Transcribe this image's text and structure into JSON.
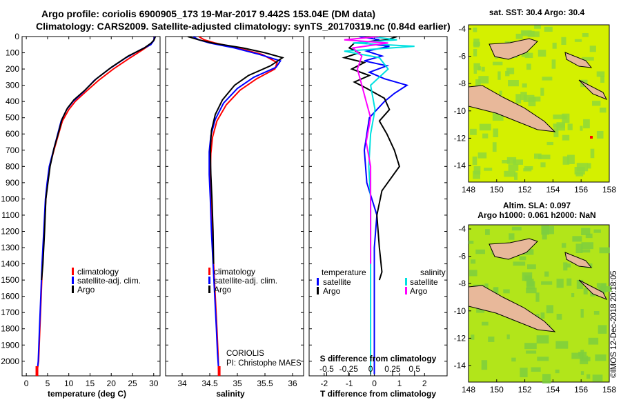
{
  "title_line1": "Argo profile: coriolis 6900905_173 19-Mar-2017 9.442S 153.04E (DM data)",
  "title_line2": "Climatology: CARS2009. Satellite-adjusted climatology: synTS_20170319.nc (0.84d earlier)",
  "watermark": "©IMOS 12-Dec-2018 20:18:05",
  "maps": {
    "top_title": "sat. SST: 30.4 Argo: 30.4",
    "bottom_title_line1": "Altim. SLA: 0.097",
    "bottom_title_line2": "Argo h1000: 0.061 h2000: NaN",
    "xticks": [
      "148",
      "150",
      "152",
      "154",
      "156",
      "158"
    ],
    "yticks": [
      "-4",
      "-6",
      "-8",
      "-10",
      "-12",
      "-14"
    ],
    "colors": {
      "sst_base": "#d4f000",
      "sst_patch": "#8ed83a",
      "sla_base": "#b2e51a",
      "sla_patch": "#7ccf3e",
      "land": "#e8b89a",
      "argo_marker": "#ff0000"
    }
  },
  "chart_data": [
    {
      "type": "line",
      "id": "temperature",
      "xlabel": "temperature (deg C)",
      "ylabel": "",
      "xlim": [
        -1,
        31.5
      ],
      "ylim": [
        2090,
        0
      ],
      "xticks": [
        0,
        5,
        10,
        15,
        20,
        25,
        30
      ],
      "yticks": [
        0,
        100,
        200,
        300,
        400,
        500,
        600,
        700,
        800,
        900,
        1000,
        1100,
        1200,
        1300,
        1400,
        1500,
        1600,
        1700,
        1800,
        1900,
        2000
      ],
      "ytick_labels": [
        "0",
        "100",
        "200",
        "300",
        "400",
        "500",
        "600",
        "700",
        "800",
        "900",
        "1000",
        "1100",
        "1200",
        "1300",
        "1400",
        "1500",
        "1600",
        "1700",
        "1800",
        "1900",
        "2000"
      ],
      "legend": [
        "climatology",
        "satellite-adj. clim.",
        "Argo"
      ],
      "series": [
        {
          "name": "climatology",
          "color": "#ff0000",
          "x": [
            30.2,
            30.0,
            29.2,
            27.5,
            24.5,
            20.5,
            17.0,
            14.0,
            11.5,
            10.0,
            8.5,
            7.6,
            6.5,
            5.5,
            5.0,
            4.6,
            4.2,
            3.8,
            3.5,
            3.2,
            2.9,
            2.6,
            2.5
          ],
          "y": [
            0,
            25,
            50,
            80,
            130,
            200,
            270,
            340,
            400,
            450,
            520,
            600,
            700,
            800,
            900,
            1000,
            1200,
            1400,
            1600,
            1800,
            2000,
            2050,
            2090
          ]
        },
        {
          "name": "satellite-adj. clim.",
          "color": "#0000ff",
          "x": [
            30.2,
            30.0,
            29.3,
            27.0,
            23.5,
            19.5,
            16.0,
            13.5,
            11.0,
            9.5,
            8.2,
            7.4,
            6.4,
            5.4,
            4.9,
            4.5,
            4.1,
            3.7,
            3.4,
            3.1,
            2.8,
            2.6,
            2.5
          ],
          "y": [
            0,
            25,
            50,
            80,
            130,
            200,
            270,
            340,
            400,
            450,
            520,
            600,
            700,
            800,
            900,
            1000,
            1200,
            1400,
            1600,
            1800,
            2000,
            2050,
            2090
          ]
        },
        {
          "name": "Argo",
          "color": "#000000",
          "x": [
            30.4,
            30.1,
            29.4,
            27.8,
            24.0,
            20.0,
            16.5,
            13.8,
            11.2,
            9.7,
            8.4,
            7.6,
            6.5,
            5.6,
            5.1,
            4.6,
            4.3,
            3.9,
            3.6
          ],
          "y": [
            0,
            20,
            40,
            70,
            120,
            190,
            260,
            330,
            390,
            440,
            510,
            590,
            690,
            800,
            900,
            1000,
            1200,
            1400,
            1500
          ]
        }
      ]
    },
    {
      "type": "line",
      "id": "salinity",
      "xlabel": "salinity",
      "ylabel": "",
      "xlim": [
        33.7,
        36.2
      ],
      "ylim": [
        2090,
        0
      ],
      "xticks": [
        34,
        34.5,
        35,
        35.5,
        36
      ],
      "xtick_labels": [
        "34",
        "34.5",
        "35",
        "35.5",
        "36"
      ],
      "legend": [
        "climatology",
        "satellite-adj. clim.",
        "Argo"
      ],
      "annotation": [
        "CORIOLIS",
        "PI: Christophe MAES"
      ],
      "series": [
        {
          "name": "climatology",
          "color": "#ff0000",
          "x": [
            34.3,
            34.4,
            34.6,
            35.0,
            35.45,
            35.72,
            35.68,
            35.35,
            35.05,
            34.8,
            34.63,
            34.55,
            34.52,
            34.51,
            34.52,
            34.54,
            34.57,
            34.6,
            34.63,
            34.65,
            34.66,
            34.67
          ],
          "y": [
            0,
            20,
            40,
            70,
            110,
            160,
            200,
            260,
            330,
            420,
            520,
            620,
            720,
            850,
            1000,
            1200,
            1400,
            1600,
            1800,
            1950,
            2050,
            2090
          ]
        },
        {
          "name": "satellite-adj. clim.",
          "color": "#0000ff",
          "x": [
            34.2,
            34.3,
            34.5,
            34.95,
            35.4,
            35.78,
            35.7,
            35.3,
            35.0,
            34.75,
            34.6,
            34.52,
            34.49,
            34.49,
            34.51,
            34.53,
            34.56,
            34.59,
            34.62,
            34.64,
            34.66,
            34.67
          ],
          "y": [
            0,
            20,
            40,
            70,
            110,
            150,
            190,
            250,
            320,
            410,
            510,
            610,
            710,
            850,
            1000,
            1200,
            1400,
            1600,
            1800,
            1950,
            2050,
            2090
          ]
        },
        {
          "name": "Argo",
          "color": "#000000",
          "x": [
            34.1,
            34.3,
            34.55,
            35.1,
            35.5,
            35.82,
            35.6,
            35.2,
            34.95,
            34.73,
            34.6,
            34.53,
            34.51,
            34.52,
            34.54,
            34.56,
            34.57
          ],
          "y": [
            0,
            20,
            40,
            70,
            100,
            130,
            180,
            240,
            300,
            390,
            480,
            580,
            700,
            850,
            1000,
            1200,
            1400
          ]
        }
      ]
    },
    {
      "type": "line",
      "id": "difference",
      "xlabel": "T difference from climatology",
      "xlabel2": "S difference from climatology",
      "xlim": [
        -2.6,
        2.9
      ],
      "ylim": [
        2090,
        0
      ],
      "xticks": [
        -2,
        -1,
        0,
        1,
        2
      ],
      "xtick_labels": [
        "-2",
        "-1",
        "0",
        "1",
        "2"
      ],
      "sticks": [
        -0.5,
        -0.25,
        0,
        0.25,
        0.5
      ],
      "stick_labels": [
        "-0.5",
        "-0.25",
        "0",
        "0.25",
        "0.5"
      ],
      "legend_temperature_title": "temperature",
      "legend_salinity_title": "salinity",
      "legend_temperature": [
        "satellite",
        "Argo"
      ],
      "legend_salinity": [
        "satellite",
        "Argo"
      ],
      "series": [
        {
          "name": "temperature satellite",
          "color": "#0000ff",
          "x": [
            -0.6,
            0.2,
            -0.5,
            0.6,
            -0.3,
            0.3,
            -0.4,
            0.5,
            -0.2,
            0.4,
            1.3,
            0.8,
            0.4,
            -0.2,
            -0.4,
            -0.3,
            0.1,
            0.0,
            0.0,
            0.0,
            0.0
          ],
          "y": [
            0,
            20,
            40,
            60,
            90,
            120,
            150,
            180,
            220,
            260,
            300,
            350,
            400,
            500,
            700,
            900,
            1100,
            1300,
            1500,
            1800,
            2080
          ]
        },
        {
          "name": "temperature Argo",
          "color": "#000000",
          "x": [
            0.9,
            0.5,
            -0.8,
            -1.0,
            -0.6,
            -1.2,
            -0.4,
            -0.9,
            -0.2,
            -0.8,
            -0.3,
            0.4,
            0.6,
            0.2,
            0.5,
            0.8,
            1.0,
            0.3,
            0.1,
            0.2,
            0.3,
            0.2
          ],
          "y": [
            0,
            20,
            40,
            70,
            100,
            130,
            160,
            200,
            240,
            280,
            320,
            380,
            450,
            520,
            600,
            700,
            800,
            950,
            1100,
            1300,
            1450,
            1500
          ]
        },
        {
          "name": "salinity satellite",
          "color": "#00e0e0",
          "x": [
            0.0,
            0.3,
            -0.2,
            0.5,
            -0.3,
            0.1,
            0.2,
            0.0,
            0.05,
            0.0,
            -0.02,
            0.0,
            0.0,
            0.0,
            0.0
          ],
          "y": [
            0,
            20,
            40,
            60,
            90,
            130,
            200,
            300,
            450,
            600,
            800,
            1000,
            1300,
            1600,
            2080
          ]
        },
        {
          "name": "salinity Argo",
          "color": "#ff00ff",
          "x": [
            0.1,
            -0.3,
            0.2,
            -0.2,
            -0.1,
            -0.15,
            -0.1,
            -0.05,
            0.0,
            -0.05,
            0.0,
            0.0,
            0.0
          ],
          "y": [
            0,
            20,
            40,
            70,
            120,
            200,
            300,
            400,
            500,
            650,
            800,
            1000,
            1400
          ]
        }
      ]
    }
  ]
}
